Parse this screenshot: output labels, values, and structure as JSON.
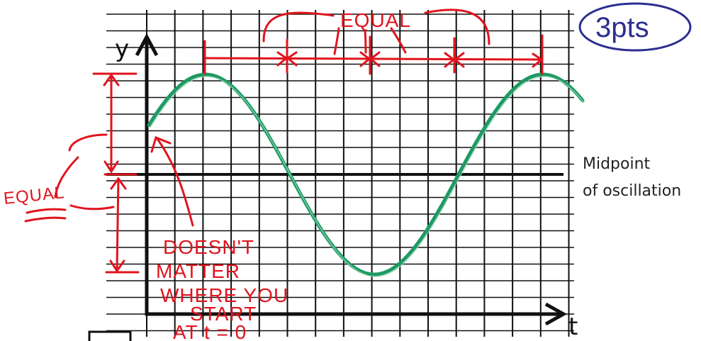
{
  "axes": {
    "y_label": "y",
    "x_label": "t"
  },
  "midline_label": {
    "line1": "Midpoint",
    "line2": "of oscillation"
  },
  "annotations": {
    "top_equal": "EQUAL",
    "side_equal": "EQUAL",
    "start_note": [
      "DOESN'T",
      "MATTER",
      "WHERE YOU",
      "START",
      "AT  t = 0"
    ],
    "points": "3pts"
  },
  "colors": {
    "grid": "#111111",
    "curve": "#1e9a63",
    "ink_red": "#e0141e",
    "ink_blue": "#2b2f8f"
  }
}
